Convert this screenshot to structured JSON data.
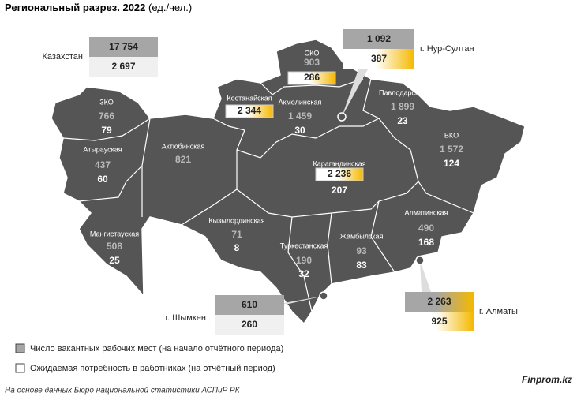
{
  "header": {
    "title": "Региональный разрез. 2022",
    "unit": "(ед./чел.)"
  },
  "total": {
    "label": "Казахстан",
    "vacancies": "17 754",
    "demand": "2 697"
  },
  "regions": [
    {
      "name": "ЗКО",
      "vacancies": "766",
      "demand": "79"
    },
    {
      "name": "Атырауская",
      "vacancies": "437",
      "demand": "60"
    },
    {
      "name": "Мангистауская",
      "vacancies": "508",
      "demand": "25"
    },
    {
      "name": "Актюбинская",
      "vacancies": "821"
    },
    {
      "name": "Костанайская",
      "vacancies": "2 344",
      "highlight": "vacancies"
    },
    {
      "name": "Акмолинская",
      "vacancies": "1 459",
      "demand": "30"
    },
    {
      "name": "СКО",
      "vacancies": "903",
      "demand": "286",
      "highlight": "demand"
    },
    {
      "name": "Павлодарская",
      "vacancies": "1 899",
      "demand": "23"
    },
    {
      "name": "ВКО",
      "vacancies": "1 572",
      "demand": "124"
    },
    {
      "name": "Карагандинская",
      "vacancies": "2 236",
      "demand": "207",
      "highlight": "vacancies"
    },
    {
      "name": "Кызылординская",
      "vacancies": "71",
      "demand": "8"
    },
    {
      "name": "Туркестанская",
      "vacancies": "190",
      "demand": "32"
    },
    {
      "name": "Жамбылская",
      "vacancies": "93",
      "demand": "83"
    },
    {
      "name": "Алматинская",
      "vacancies": "490",
      "demand": "168"
    }
  ],
  "cities": [
    {
      "name": "г. Нур-Султан",
      "vacancies": "1 092",
      "demand": "387",
      "highlight": "demand"
    },
    {
      "name": "г. Шымкент",
      "vacancies": "610",
      "demand": "260"
    },
    {
      "name": "г. Алматы",
      "vacancies": "2 263",
      "demand": "925",
      "highlight": "both"
    }
  ],
  "legend": {
    "vacancies": "Число вакантных рабочих мест (на начало отчётного периода)",
    "demand": "Ожидаемая потребность в работниках (на отчётный период)"
  },
  "footer": {
    "source": "На основе данных Бюро национальной статистики АСПиР РК",
    "brand": "Finprom.kz"
  }
}
